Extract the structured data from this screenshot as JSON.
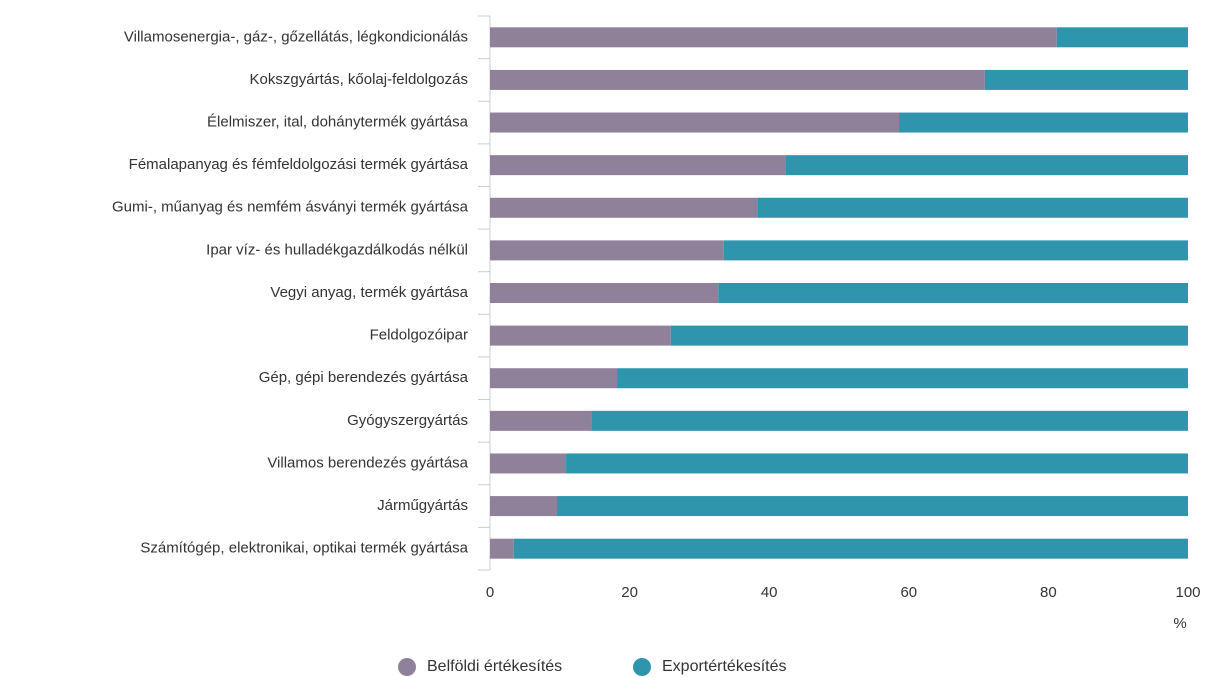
{
  "chart_data": {
    "type": "stacked-bar",
    "orientation": "horizontal",
    "categories": [
      "Villamosenergia-, gáz-, gőzellátás, légkondicionálás",
      "Kokszgyártás, kőolaj-feldolgozás",
      "Élelmiszer, ital, dohánytermék gyártása",
      "Fémalapanyag és fémfeldolgozási termék gyártása",
      "Gumi-, műanyag és nemfém ásványi termék gyártása",
      "Ipar víz- és hulladékgazdálkodás nélkül",
      "Vegyi anyag, termék gyártása",
      "Feldolgozóipar",
      "Gép, gépi berendezés gyártása",
      "Gyógyszergyártás",
      "Villamos berendezés gyártása",
      "Járműgyártás",
      "Számítógép, elektronikai, optikai termék gyártása"
    ],
    "series": [
      {
        "name": "Belföldi értékesítés",
        "color": "#8f8199",
        "values": [
          81.2,
          70.9,
          58.6,
          42.3,
          38.3,
          33.5,
          32.7,
          25.9,
          18.2,
          14.5,
          10.9,
          9.6,
          3.4
        ]
      },
      {
        "name": "Exportértékesítés",
        "color": "#2e95ad",
        "values": [
          18.8,
          29.1,
          41.4,
          57.7,
          61.7,
          66.5,
          67.3,
          74.1,
          81.8,
          85.5,
          89.1,
          90.4,
          96.6
        ]
      }
    ],
    "x_label": "%",
    "xlim": [
      0,
      100
    ],
    "xticks": [
      0,
      20,
      40,
      60,
      80,
      100
    ],
    "grid": false,
    "legend": "bottom"
  }
}
